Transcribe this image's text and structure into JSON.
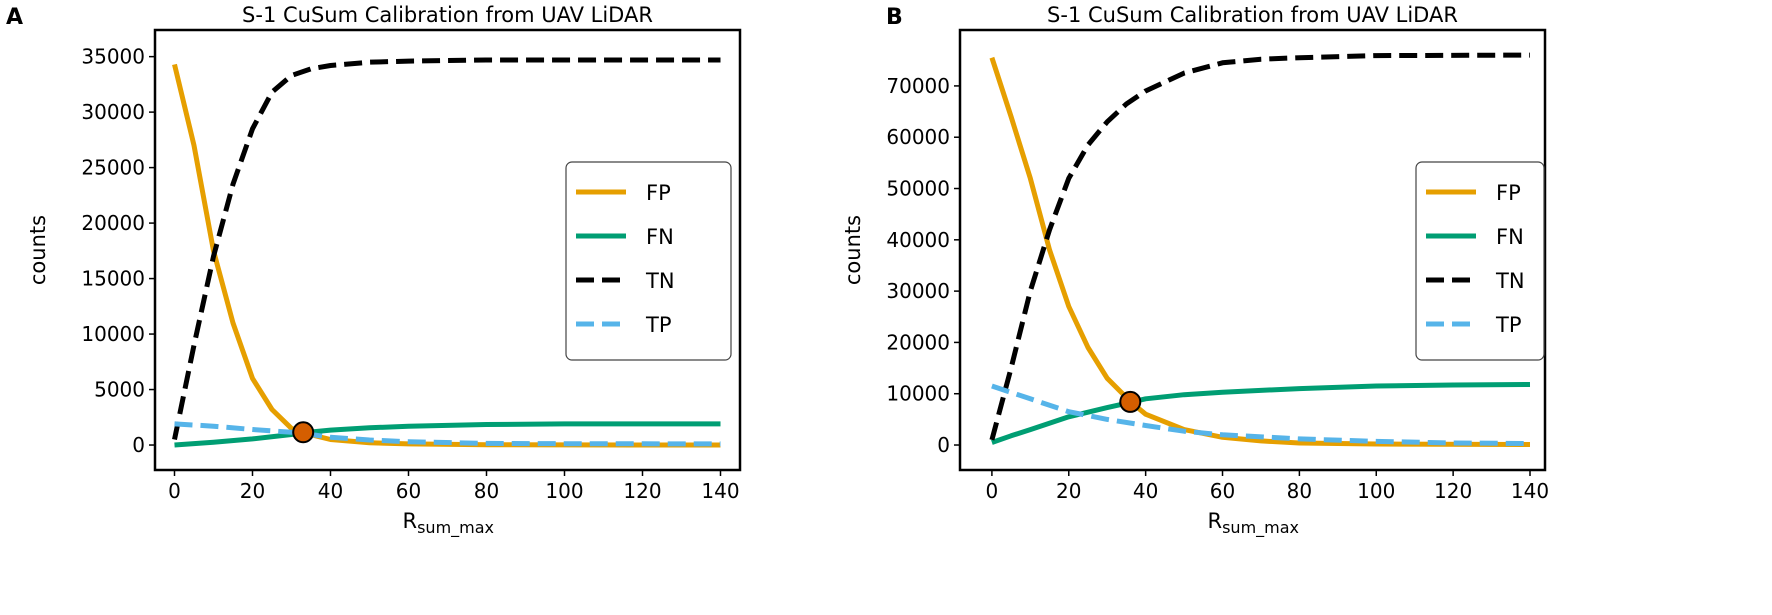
{
  "chart_data": [
    {
      "panel_label": "A",
      "type": "line",
      "title": "S-1 CuSum Calibration from UAV LiDAR",
      "xlabel_main": "R",
      "xlabel_sub": "sum_max",
      "ylabel": "counts",
      "xlim": [
        -5,
        145
      ],
      "ylim": [
        -2250,
        37400
      ],
      "xticks": [
        0,
        20,
        40,
        60,
        80,
        100,
        120,
        140
      ],
      "yticks": [
        0,
        5000,
        10000,
        15000,
        20000,
        25000,
        30000,
        35000
      ],
      "legend_position": "center-right",
      "series": [
        {
          "name": "FP",
          "color": "#E69F00",
          "dash": false,
          "x": [
            0,
            5,
            10,
            15,
            20,
            25,
            30,
            33,
            40,
            50,
            60,
            80,
            100,
            140
          ],
          "y": [
            34300,
            27000,
            17500,
            11000,
            6000,
            3200,
            1500,
            1100,
            500,
            200,
            100,
            30,
            10,
            0
          ]
        },
        {
          "name": "FN",
          "color": "#009E73",
          "dash": false,
          "x": [
            0,
            10,
            20,
            30,
            33,
            40,
            50,
            60,
            80,
            100,
            140
          ],
          "y": [
            0,
            250,
            550,
            950,
            1100,
            1350,
            1550,
            1700,
            1850,
            1900,
            1900
          ]
        },
        {
          "name": "TN",
          "color": "#000000",
          "dash": true,
          "x": [
            0,
            5,
            10,
            15,
            20,
            25,
            30,
            35,
            40,
            50,
            60,
            80,
            140
          ],
          "y": [
            500,
            9000,
            17000,
            23500,
            28500,
            31800,
            33300,
            33900,
            34200,
            34500,
            34600,
            34700,
            34700
          ]
        },
        {
          "name": "TP",
          "color": "#56B4E9",
          "dash": true,
          "x": [
            0,
            10,
            20,
            30,
            33,
            40,
            50,
            60,
            80,
            100,
            140
          ],
          "y": [
            1900,
            1700,
            1400,
            1150,
            1050,
            700,
            450,
            300,
            150,
            120,
            100
          ]
        }
      ],
      "marker": {
        "x": 33,
        "y": 1150,
        "color": "#D55E00"
      }
    },
    {
      "panel_label": "B",
      "type": "line",
      "title": "S-1 CuSum Calibration from UAV LiDAR",
      "xlabel_main": "R",
      "xlabel_sub": "sum_max",
      "ylabel": "counts",
      "xlim": [
        -8.3,
        143.9
      ],
      "ylim": [
        -4870,
        80900
      ],
      "xticks": [
        0,
        20,
        40,
        60,
        80,
        100,
        120,
        140
      ],
      "yticks": [
        0,
        10000,
        20000,
        30000,
        40000,
        50000,
        60000,
        70000
      ],
      "legend_position": "center-right",
      "series": [
        {
          "name": "FP",
          "color": "#E69F00",
          "dash": false,
          "x": [
            0,
            5,
            10,
            15,
            20,
            25,
            30,
            36,
            40,
            50,
            60,
            70,
            80,
            100,
            140
          ],
          "y": [
            75500,
            64000,
            52000,
            38000,
            27000,
            19000,
            13000,
            8500,
            6000,
            3000,
            1500,
            800,
            400,
            200,
            100
          ]
        },
        {
          "name": "FN",
          "color": "#009E73",
          "dash": false,
          "x": [
            0,
            5,
            10,
            20,
            30,
            36,
            40,
            50,
            60,
            80,
            100,
            120,
            140
          ],
          "y": [
            500,
            1800,
            3000,
            5500,
            7300,
            8300,
            9000,
            9800,
            10300,
            11000,
            11500,
            11700,
            11800
          ]
        },
        {
          "name": "TN",
          "color": "#000000",
          "dash": true,
          "x": [
            0,
            5,
            10,
            15,
            20,
            25,
            30,
            35,
            40,
            50,
            60,
            70,
            80,
            100,
            140
          ],
          "y": [
            1000,
            15000,
            30000,
            42000,
            52000,
            58500,
            63000,
            66500,
            69000,
            72500,
            74500,
            75200,
            75500,
            75900,
            76000
          ]
        },
        {
          "name": "TP",
          "color": "#56B4E9",
          "dash": true,
          "x": [
            0,
            10,
            20,
            30,
            40,
            50,
            60,
            80,
            100,
            120,
            140
          ],
          "y": [
            11500,
            9000,
            6500,
            5000,
            3800,
            2700,
            2000,
            1200,
            700,
            400,
            300
          ]
        }
      ],
      "marker": {
        "x": 36,
        "y": 8400,
        "color": "#D55E00"
      }
    }
  ]
}
